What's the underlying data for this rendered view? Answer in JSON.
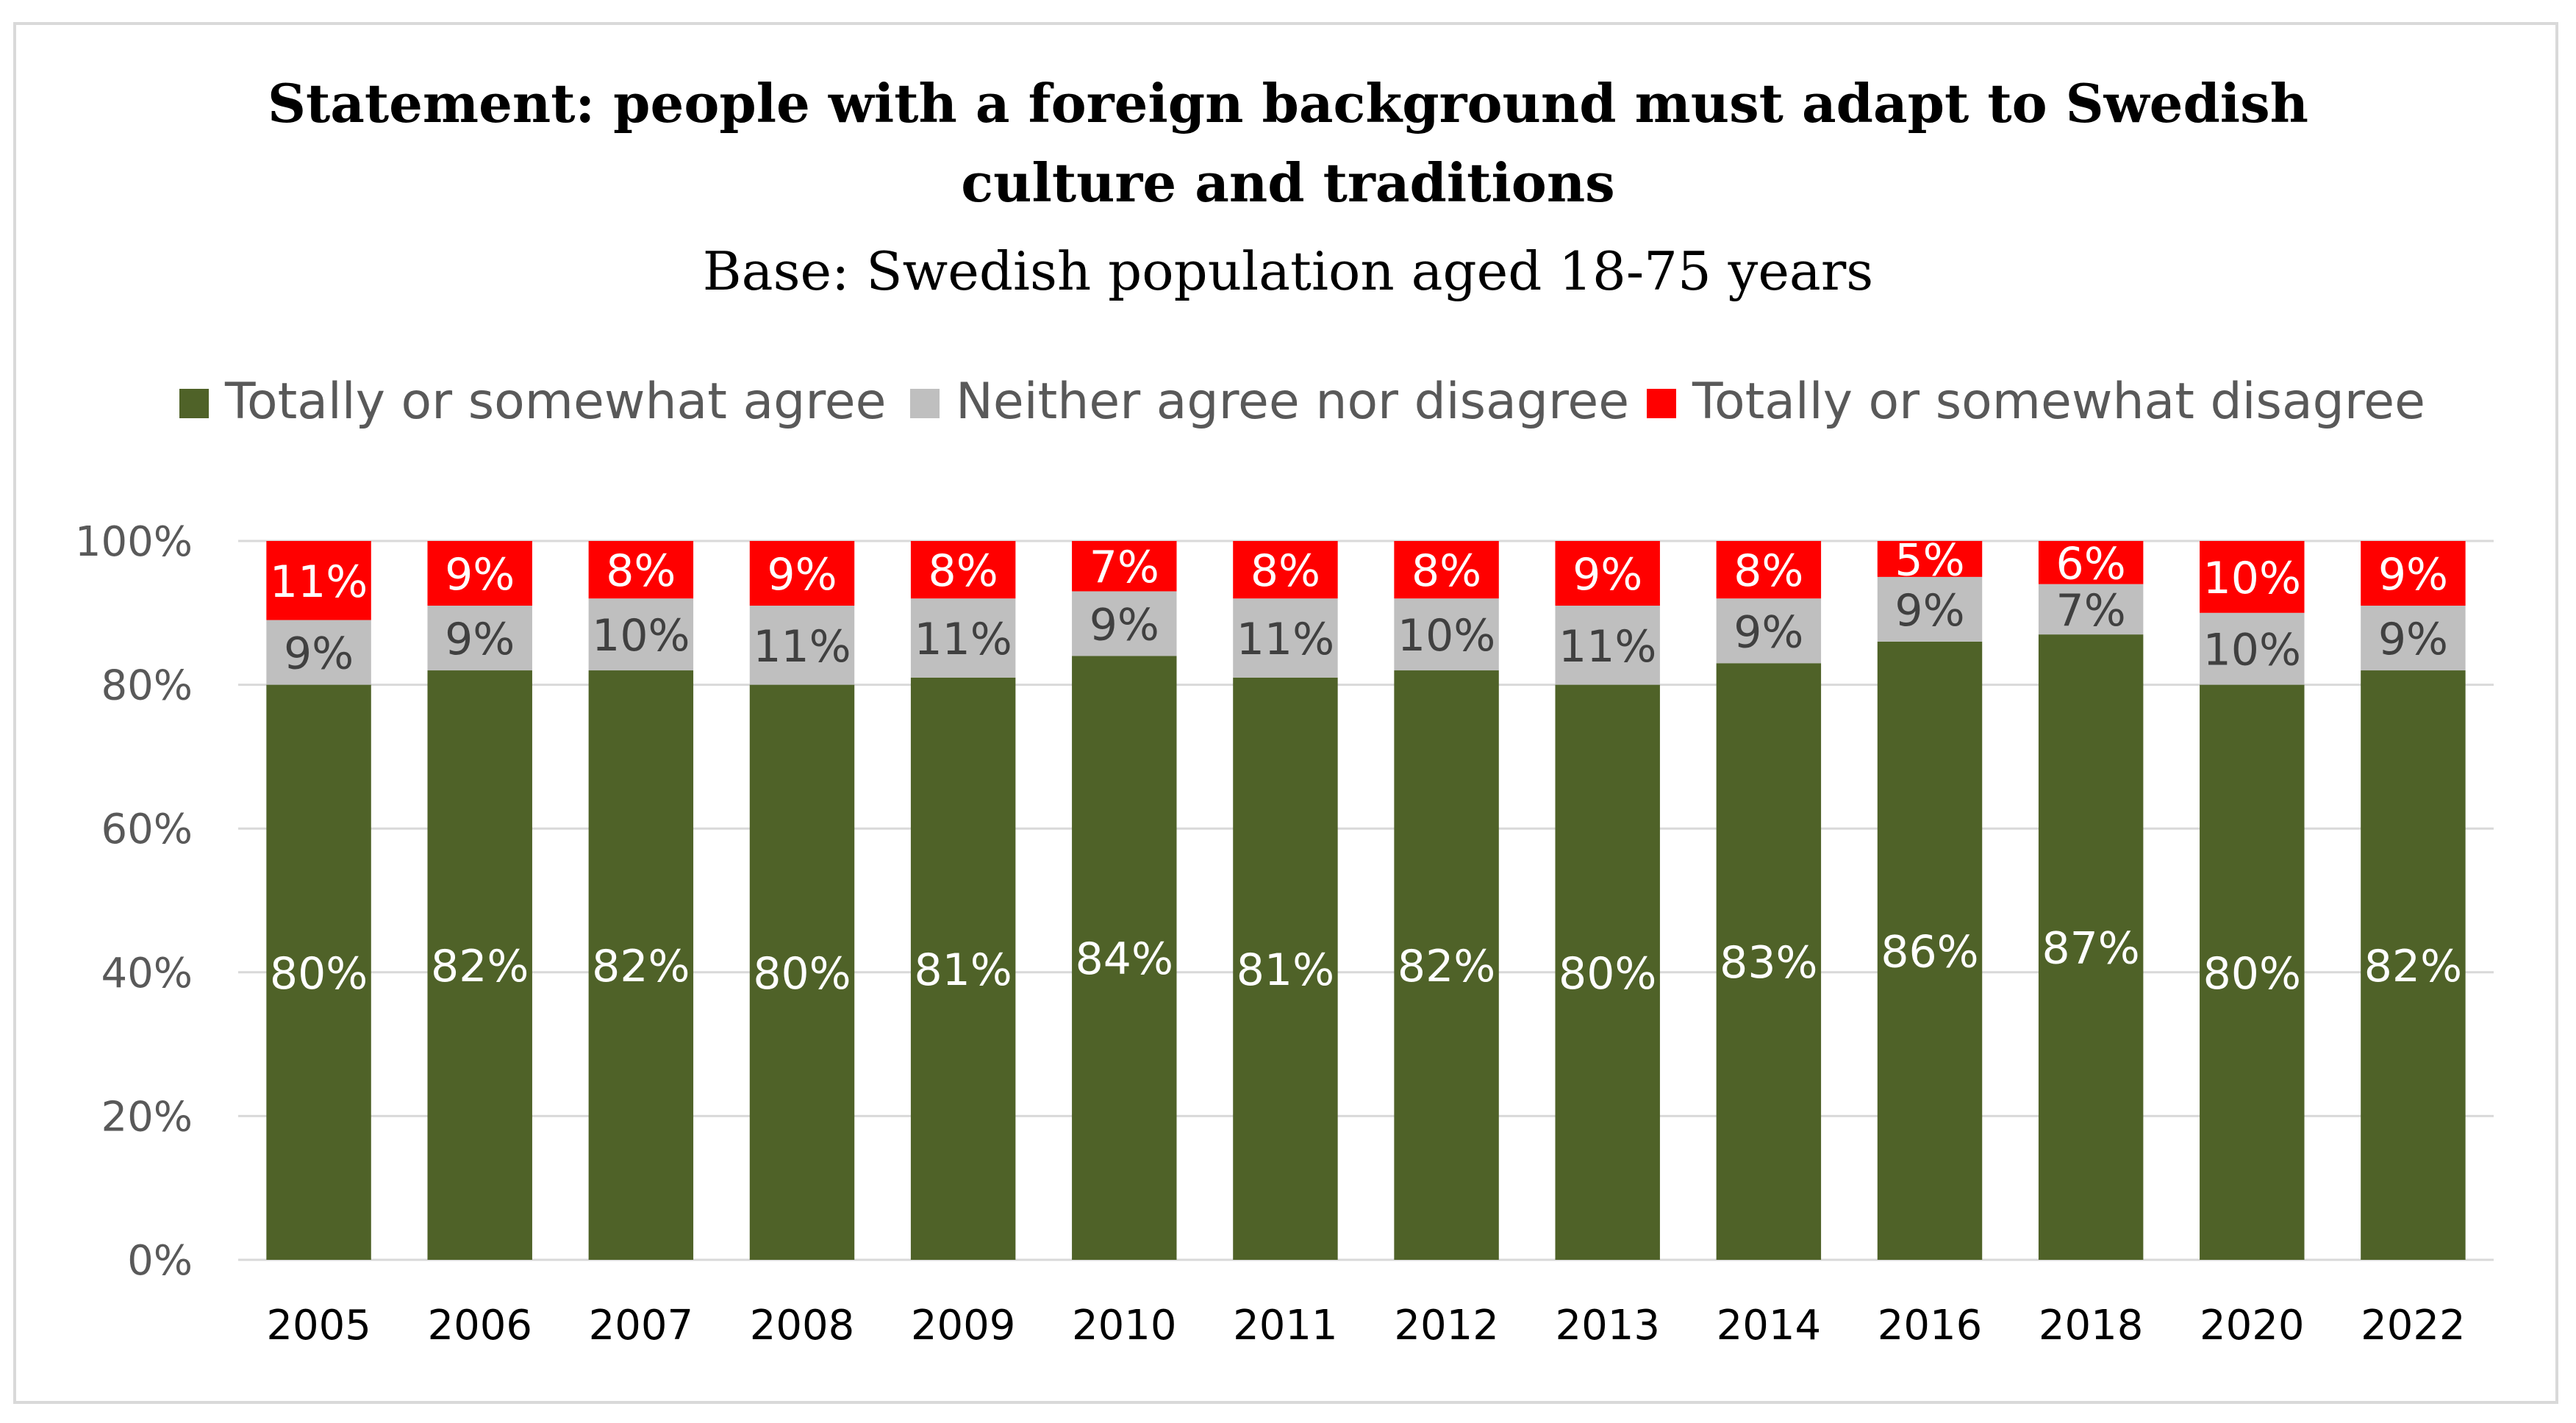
{
  "chart_data": {
    "type": "bar",
    "stacked": true,
    "title": "Statement: people with a foreign background must adapt to Swedish culture and traditions",
    "title_lines": [
      "Statement: people with a foreign background must adapt to Swedish",
      "culture and traditions"
    ],
    "subtitle": "Base: Swedish population aged 18-75 years",
    "xlabel": "",
    "ylabel": "",
    "ylim": [
      0,
      100
    ],
    "y_ticks": [
      "0%",
      "20%",
      "40%",
      "60%",
      "80%",
      "100%"
    ],
    "y_tick_values": [
      0,
      20,
      40,
      60,
      80,
      100
    ],
    "categories": [
      "2005",
      "2006",
      "2007",
      "2008",
      "2009",
      "2010",
      "2011",
      "2012",
      "2013",
      "2014",
      "2016",
      "2018",
      "2020",
      "2022"
    ],
    "series": [
      {
        "name": "Totally or somewhat agree",
        "color": "#4f6228",
        "values": [
          80,
          82,
          82,
          80,
          81,
          84,
          81,
          82,
          80,
          83,
          86,
          87,
          80,
          82
        ],
        "labels": [
          "80%",
          "82%",
          "82%",
          "80%",
          "81%",
          "84%",
          "81%",
          "82%",
          "80%",
          "83%",
          "86%",
          "87%",
          "80%",
          "82%"
        ]
      },
      {
        "name": "Neither agree nor disagree",
        "color": "#bfbfbf",
        "values": [
          9,
          9,
          10,
          11,
          11,
          9,
          11,
          10,
          11,
          9,
          9,
          7,
          10,
          9
        ],
        "labels": [
          "9%",
          "9%",
          "10%",
          "11%",
          "11%",
          "9%",
          "11%",
          "10%",
          "11%",
          "9%",
          "9%",
          "7%",
          "10%",
          "9%"
        ]
      },
      {
        "name": "Totally or somewhat disagree",
        "color": "#ff0000",
        "values": [
          11,
          9,
          8,
          9,
          8,
          7,
          8,
          8,
          9,
          8,
          5,
          6,
          10,
          9
        ],
        "labels": [
          "11%",
          "9%",
          "8%",
          "9%",
          "8%",
          "7%",
          "8%",
          "8%",
          "9%",
          "8%",
          "5%",
          "6%",
          "10%",
          "9%"
        ]
      }
    ],
    "legend_position": "top",
    "grid": true,
    "gridline_color": "#d9d9d9"
  }
}
